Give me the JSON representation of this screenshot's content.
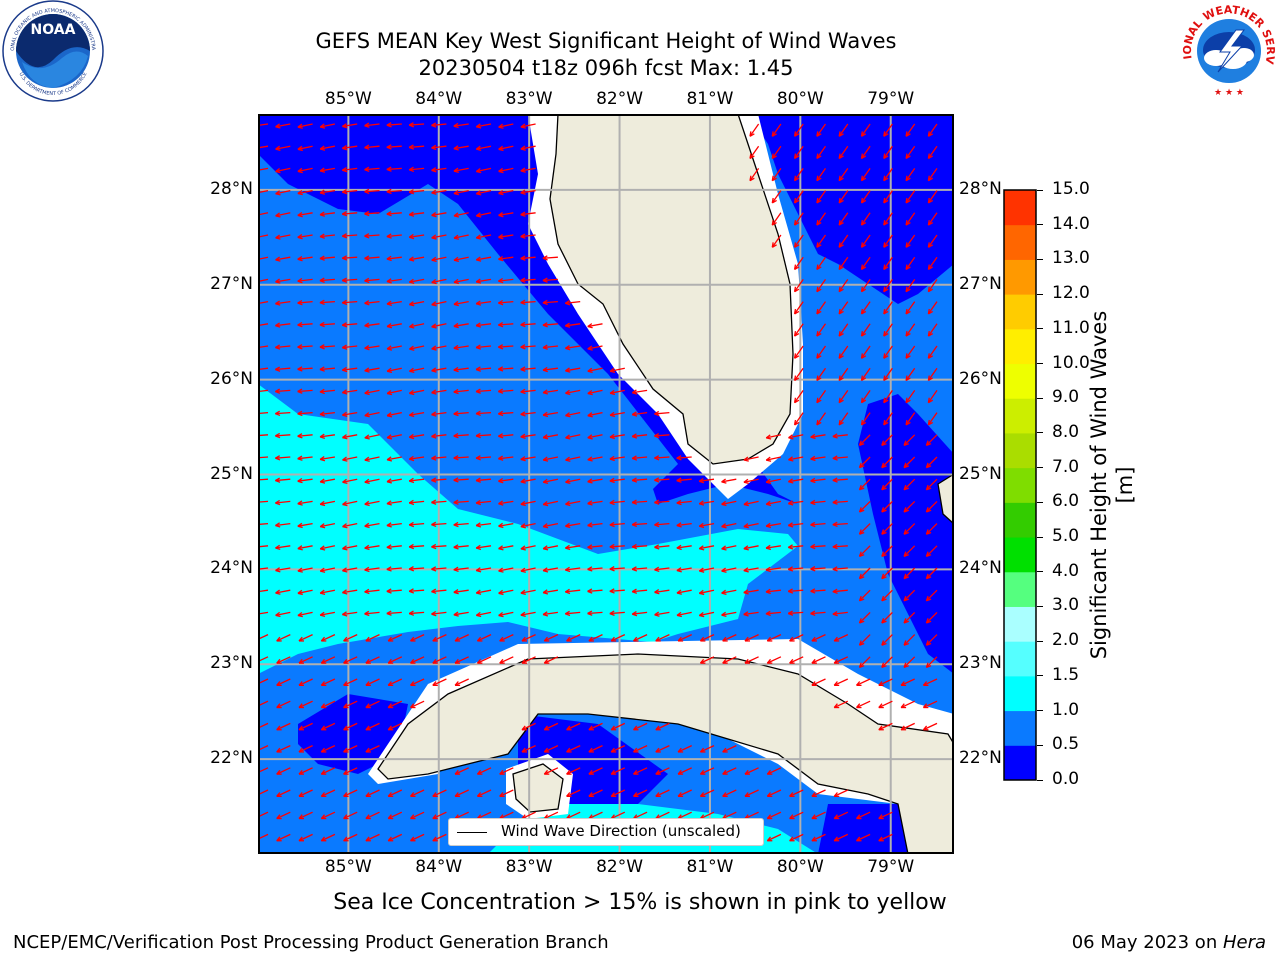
{
  "header": {
    "title_line1": "GEFS MEAN Key West Significant Height of Wind Waves",
    "title_line2": "20230504 t18z 096h fcst   Max: 1.45"
  },
  "logos": {
    "left_icon": "noaa-logo",
    "left_text": "NOAA",
    "left_ring_top": "NATIONAL OCEANIC AND ATMOSPHERIC ADMINISTRATION",
    "left_ring_bottom": "U.S. DEPARTMENT OF COMMERCE",
    "right_icon": "national-weather-service-logo",
    "right_ring_text": "NATIONAL WEATHER SERVICE"
  },
  "map": {
    "lon_ticks": [
      "85°W",
      "84°W",
      "83°W",
      "82°W",
      "81°W",
      "80°W",
      "79°W"
    ],
    "lat_ticks": [
      "28°N",
      "27°N",
      "26°N",
      "25°N",
      "24°N",
      "23°N",
      "22°N"
    ],
    "lon_range": [
      -86.0,
      -78.3
    ],
    "lat_range": [
      21.0,
      28.8
    ],
    "legend_label": "Wind Wave Direction (unscaled)",
    "colors": {
      "land": "#eeecdc",
      "coast": "#000000",
      "grid": "#b0b0b0",
      "arrow": "#ff0000",
      "band_0_05": "#0000ff",
      "band_05_10": "#0a7aff",
      "band_10_15": "#00ffff"
    }
  },
  "colorbar": {
    "label": "Significant Height of Wind Waves [m]",
    "ticks": [
      "15.0",
      "14.0",
      "13.0",
      "12.0",
      "11.0",
      "10.0",
      "9.0",
      "8.0",
      "7.0",
      "6.0",
      "5.0",
      "4.0",
      "3.0",
      "2.0",
      "1.5",
      "1.0",
      "0.5",
      "0.0"
    ],
    "levels": [
      0.0,
      0.5,
      1.0,
      1.5,
      2.0,
      3.0,
      4.0,
      5.0,
      6.0,
      7.0,
      8.0,
      9.0,
      10.0,
      11.0,
      12.0,
      13.0,
      14.0,
      15.0
    ],
    "colors": [
      "#0000ff",
      "#0a7aff",
      "#00ffff",
      "#55ffff",
      "#aaffff",
      "#55ff7f",
      "#00e000",
      "#33cc00",
      "#7fdd00",
      "#aadd00",
      "#ccee00",
      "#eeff00",
      "#ffee00",
      "#ffcc00",
      "#ff9900",
      "#ff6600",
      "#ff3300"
    ]
  },
  "notes": {
    "sea_ice": "Sea Ice Concentration > 15% is shown in pink to yellow"
  },
  "footer": {
    "left": "NCEP/EMC/Verification Post Processing Product Generation Branch",
    "date": "06 May 2023 on ",
    "machine": "Hera"
  }
}
